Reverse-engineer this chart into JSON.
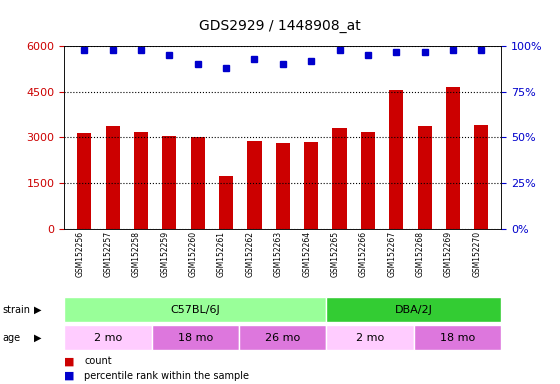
{
  "title": "GDS2929 / 1448908_at",
  "samples": [
    "GSM152256",
    "GSM152257",
    "GSM152258",
    "GSM152259",
    "GSM152260",
    "GSM152261",
    "GSM152262",
    "GSM152263",
    "GSM152264",
    "GSM152265",
    "GSM152266",
    "GSM152267",
    "GSM152268",
    "GSM152269",
    "GSM152270"
  ],
  "counts": [
    3150,
    3380,
    3170,
    3050,
    3000,
    1750,
    2880,
    2820,
    2850,
    3320,
    3180,
    4560,
    3380,
    4650,
    3400
  ],
  "percentile_ranks": [
    98,
    98,
    98,
    95,
    90,
    88,
    93,
    90,
    92,
    98,
    95,
    97,
    97,
    98,
    98
  ],
  "bar_color": "#cc0000",
  "dot_color": "#0000cc",
  "ylim_left": [
    0,
    6000
  ],
  "ylim_right": [
    0,
    100
  ],
  "yticks_left": [
    0,
    1500,
    3000,
    4500,
    6000
  ],
  "yticks_right": [
    0,
    25,
    50,
    75,
    100
  ],
  "grid_color": "black",
  "strain_groups": [
    {
      "label": "C57BL/6J",
      "start": 0,
      "end": 9,
      "color": "#99ff99"
    },
    {
      "label": "DBA/2J",
      "start": 9,
      "end": 15,
      "color": "#33cc33"
    }
  ],
  "age_groups": [
    {
      "label": "2 mo",
      "start": 0,
      "end": 3,
      "color": "#ffccff"
    },
    {
      "label": "18 mo",
      "start": 3,
      "end": 6,
      "color": "#dd77dd"
    },
    {
      "label": "26 mo",
      "start": 6,
      "end": 9,
      "color": "#dd77dd"
    },
    {
      "label": "2 mo",
      "start": 9,
      "end": 12,
      "color": "#ffccff"
    },
    {
      "label": "18 mo",
      "start": 12,
      "end": 15,
      "color": "#dd77dd"
    }
  ],
  "legend_count_label": "count",
  "legend_pct_label": "percentile rank within the sample",
  "bar_color_label": "#cc0000",
  "dot_color_label": "#0000cc"
}
